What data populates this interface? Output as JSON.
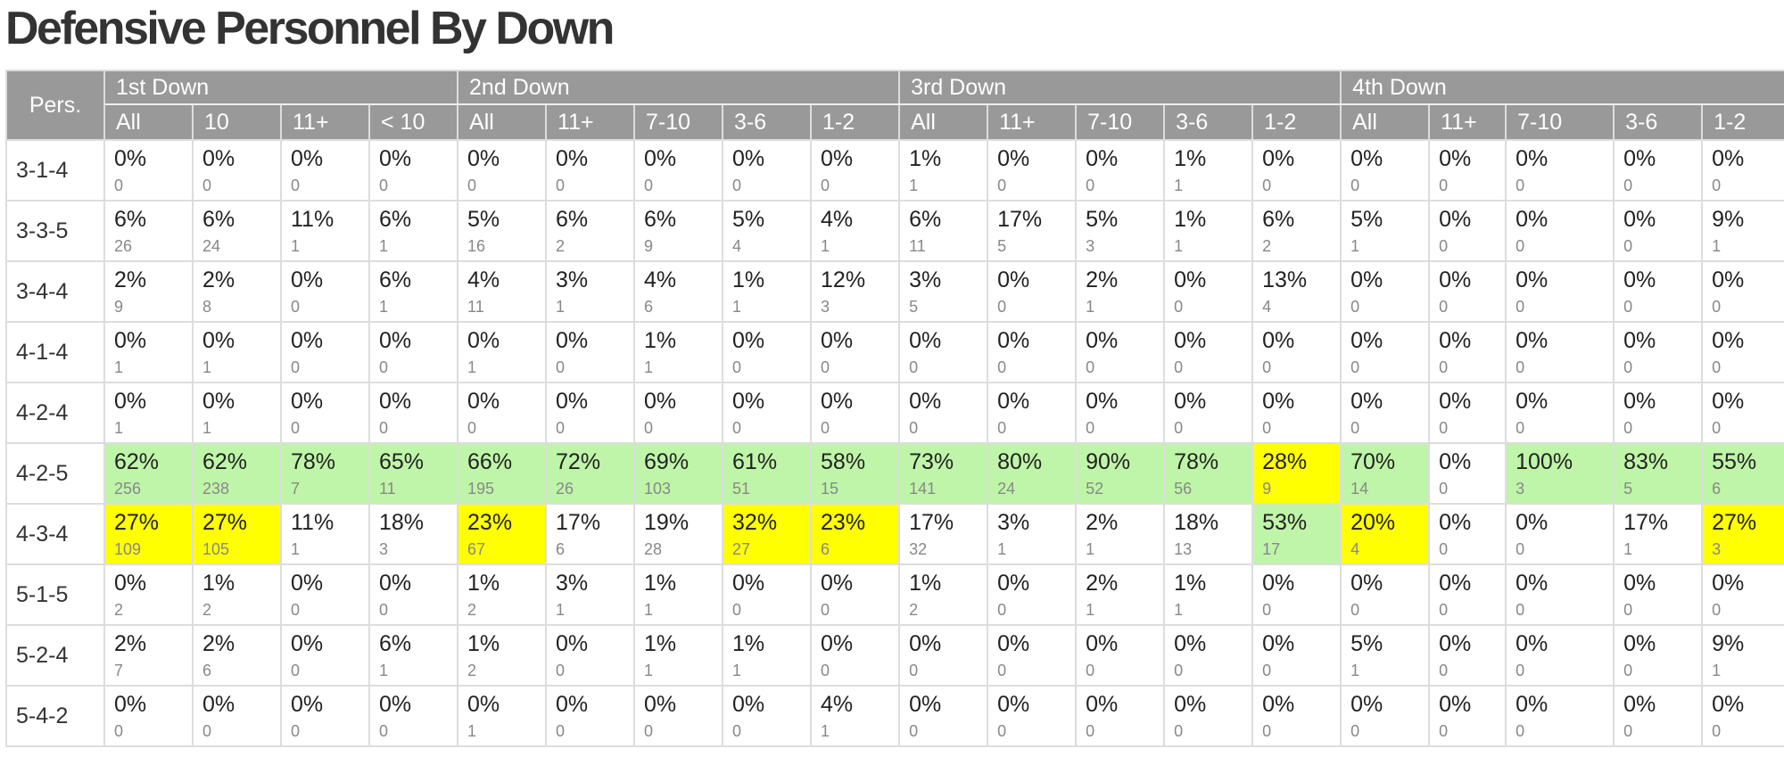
{
  "title": "Defensive Personnel By Down",
  "pers_header": "Pers.",
  "colors": {
    "header_bg": "#999999",
    "highlight_green": "#bff5a8",
    "highlight_yellow": "#ffff00"
  },
  "downs": [
    {
      "label": "1st Down",
      "columns": [
        "All",
        "10",
        "11+",
        "< 10"
      ]
    },
    {
      "label": "2nd Down",
      "columns": [
        "All",
        "11+",
        "7-10",
        "3-6",
        "1-2"
      ]
    },
    {
      "label": "3rd Down",
      "columns": [
        "All",
        "11+",
        "7-10",
        "3-6",
        "1-2"
      ]
    },
    {
      "label": "4th Down",
      "columns": [
        "All",
        "11+",
        "7-10",
        "3-6",
        "1-2"
      ]
    }
  ],
  "rows": [
    {
      "label": "3-1-4",
      "cells": [
        {
          "pct": "0%",
          "count": "0"
        },
        {
          "pct": "0%",
          "count": "0"
        },
        {
          "pct": "0%",
          "count": "0"
        },
        {
          "pct": "0%",
          "count": "0"
        },
        {
          "pct": "0%",
          "count": "0"
        },
        {
          "pct": "0%",
          "count": "0"
        },
        {
          "pct": "0%",
          "count": "0"
        },
        {
          "pct": "0%",
          "count": "0"
        },
        {
          "pct": "0%",
          "count": "0"
        },
        {
          "pct": "1%",
          "count": "1"
        },
        {
          "pct": "0%",
          "count": "0"
        },
        {
          "pct": "0%",
          "count": "0"
        },
        {
          "pct": "1%",
          "count": "1"
        },
        {
          "pct": "0%",
          "count": "0"
        },
        {
          "pct": "0%",
          "count": "0"
        },
        {
          "pct": "0%",
          "count": "0"
        },
        {
          "pct": "0%",
          "count": "0"
        },
        {
          "pct": "0%",
          "count": "0"
        },
        {
          "pct": "0%",
          "count": "0"
        }
      ]
    },
    {
      "label": "3-3-5",
      "cells": [
        {
          "pct": "6%",
          "count": "26"
        },
        {
          "pct": "6%",
          "count": "24"
        },
        {
          "pct": "11%",
          "count": "1"
        },
        {
          "pct": "6%",
          "count": "1"
        },
        {
          "pct": "5%",
          "count": "16"
        },
        {
          "pct": "6%",
          "count": "2"
        },
        {
          "pct": "6%",
          "count": "9"
        },
        {
          "pct": "5%",
          "count": "4"
        },
        {
          "pct": "4%",
          "count": "1"
        },
        {
          "pct": "6%",
          "count": "11"
        },
        {
          "pct": "17%",
          "count": "5"
        },
        {
          "pct": "5%",
          "count": "3"
        },
        {
          "pct": "1%",
          "count": "1"
        },
        {
          "pct": "6%",
          "count": "2"
        },
        {
          "pct": "5%",
          "count": "1"
        },
        {
          "pct": "0%",
          "count": "0"
        },
        {
          "pct": "0%",
          "count": "0"
        },
        {
          "pct": "0%",
          "count": "0"
        },
        {
          "pct": "9%",
          "count": "1"
        }
      ]
    },
    {
      "label": "3-4-4",
      "cells": [
        {
          "pct": "2%",
          "count": "9"
        },
        {
          "pct": "2%",
          "count": "8"
        },
        {
          "pct": "0%",
          "count": "0"
        },
        {
          "pct": "6%",
          "count": "1"
        },
        {
          "pct": "4%",
          "count": "11"
        },
        {
          "pct": "3%",
          "count": "1"
        },
        {
          "pct": "4%",
          "count": "6"
        },
        {
          "pct": "1%",
          "count": "1"
        },
        {
          "pct": "12%",
          "count": "3"
        },
        {
          "pct": "3%",
          "count": "5"
        },
        {
          "pct": "0%",
          "count": "0"
        },
        {
          "pct": "2%",
          "count": "1"
        },
        {
          "pct": "0%",
          "count": "0"
        },
        {
          "pct": "13%",
          "count": "4"
        },
        {
          "pct": "0%",
          "count": "0"
        },
        {
          "pct": "0%",
          "count": "0"
        },
        {
          "pct": "0%",
          "count": "0"
        },
        {
          "pct": "0%",
          "count": "0"
        },
        {
          "pct": "0%",
          "count": "0"
        }
      ]
    },
    {
      "label": "4-1-4",
      "cells": [
        {
          "pct": "0%",
          "count": "1"
        },
        {
          "pct": "0%",
          "count": "1"
        },
        {
          "pct": "0%",
          "count": "0"
        },
        {
          "pct": "0%",
          "count": "0"
        },
        {
          "pct": "0%",
          "count": "1"
        },
        {
          "pct": "0%",
          "count": "0"
        },
        {
          "pct": "1%",
          "count": "1"
        },
        {
          "pct": "0%",
          "count": "0"
        },
        {
          "pct": "0%",
          "count": "0"
        },
        {
          "pct": "0%",
          "count": "0"
        },
        {
          "pct": "0%",
          "count": "0"
        },
        {
          "pct": "0%",
          "count": "0"
        },
        {
          "pct": "0%",
          "count": "0"
        },
        {
          "pct": "0%",
          "count": "0"
        },
        {
          "pct": "0%",
          "count": "0"
        },
        {
          "pct": "0%",
          "count": "0"
        },
        {
          "pct": "0%",
          "count": "0"
        },
        {
          "pct": "0%",
          "count": "0"
        },
        {
          "pct": "0%",
          "count": "0"
        }
      ]
    },
    {
      "label": "4-2-4",
      "cells": [
        {
          "pct": "0%",
          "count": "1"
        },
        {
          "pct": "0%",
          "count": "1"
        },
        {
          "pct": "0%",
          "count": "0"
        },
        {
          "pct": "0%",
          "count": "0"
        },
        {
          "pct": "0%",
          "count": "0"
        },
        {
          "pct": "0%",
          "count": "0"
        },
        {
          "pct": "0%",
          "count": "0"
        },
        {
          "pct": "0%",
          "count": "0"
        },
        {
          "pct": "0%",
          "count": "0"
        },
        {
          "pct": "0%",
          "count": "0"
        },
        {
          "pct": "0%",
          "count": "0"
        },
        {
          "pct": "0%",
          "count": "0"
        },
        {
          "pct": "0%",
          "count": "0"
        },
        {
          "pct": "0%",
          "count": "0"
        },
        {
          "pct": "0%",
          "count": "0"
        },
        {
          "pct": "0%",
          "count": "0"
        },
        {
          "pct": "0%",
          "count": "0"
        },
        {
          "pct": "0%",
          "count": "0"
        },
        {
          "pct": "0%",
          "count": "0"
        }
      ]
    },
    {
      "label": "4-2-5",
      "cells": [
        {
          "pct": "62%",
          "count": "256",
          "hl": "green"
        },
        {
          "pct": "62%",
          "count": "238",
          "hl": "green"
        },
        {
          "pct": "78%",
          "count": "7",
          "hl": "green"
        },
        {
          "pct": "65%",
          "count": "11",
          "hl": "green"
        },
        {
          "pct": "66%",
          "count": "195",
          "hl": "green"
        },
        {
          "pct": "72%",
          "count": "26",
          "hl": "green"
        },
        {
          "pct": "69%",
          "count": "103",
          "hl": "green"
        },
        {
          "pct": "61%",
          "count": "51",
          "hl": "green"
        },
        {
          "pct": "58%",
          "count": "15",
          "hl": "green"
        },
        {
          "pct": "73%",
          "count": "141",
          "hl": "green"
        },
        {
          "pct": "80%",
          "count": "24",
          "hl": "green"
        },
        {
          "pct": "90%",
          "count": "52",
          "hl": "green"
        },
        {
          "pct": "78%",
          "count": "56",
          "hl": "green"
        },
        {
          "pct": "28%",
          "count": "9",
          "hl": "yellow"
        },
        {
          "pct": "70%",
          "count": "14",
          "hl": "green"
        },
        {
          "pct": "0%",
          "count": "0"
        },
        {
          "pct": "100%",
          "count": "3",
          "hl": "green"
        },
        {
          "pct": "83%",
          "count": "5",
          "hl": "green"
        },
        {
          "pct": "55%",
          "count": "6",
          "hl": "green"
        }
      ]
    },
    {
      "label": "4-3-4",
      "cells": [
        {
          "pct": "27%",
          "count": "109",
          "hl": "yellow"
        },
        {
          "pct": "27%",
          "count": "105",
          "hl": "yellow"
        },
        {
          "pct": "11%",
          "count": "1"
        },
        {
          "pct": "18%",
          "count": "3"
        },
        {
          "pct": "23%",
          "count": "67",
          "hl": "yellow"
        },
        {
          "pct": "17%",
          "count": "6"
        },
        {
          "pct": "19%",
          "count": "28"
        },
        {
          "pct": "32%",
          "count": "27",
          "hl": "yellow"
        },
        {
          "pct": "23%",
          "count": "6",
          "hl": "yellow"
        },
        {
          "pct": "17%",
          "count": "32"
        },
        {
          "pct": "3%",
          "count": "1"
        },
        {
          "pct": "2%",
          "count": "1"
        },
        {
          "pct": "18%",
          "count": "13"
        },
        {
          "pct": "53%",
          "count": "17",
          "hl": "green"
        },
        {
          "pct": "20%",
          "count": "4",
          "hl": "yellow"
        },
        {
          "pct": "0%",
          "count": "0"
        },
        {
          "pct": "0%",
          "count": "0"
        },
        {
          "pct": "17%",
          "count": "1"
        },
        {
          "pct": "27%",
          "count": "3",
          "hl": "yellow"
        }
      ]
    },
    {
      "label": "5-1-5",
      "cells": [
        {
          "pct": "0%",
          "count": "2"
        },
        {
          "pct": "1%",
          "count": "2"
        },
        {
          "pct": "0%",
          "count": "0"
        },
        {
          "pct": "0%",
          "count": "0"
        },
        {
          "pct": "1%",
          "count": "2"
        },
        {
          "pct": "3%",
          "count": "1"
        },
        {
          "pct": "1%",
          "count": "1"
        },
        {
          "pct": "0%",
          "count": "0"
        },
        {
          "pct": "0%",
          "count": "0"
        },
        {
          "pct": "1%",
          "count": "2"
        },
        {
          "pct": "0%",
          "count": "0"
        },
        {
          "pct": "2%",
          "count": "1"
        },
        {
          "pct": "1%",
          "count": "1"
        },
        {
          "pct": "0%",
          "count": "0"
        },
        {
          "pct": "0%",
          "count": "0"
        },
        {
          "pct": "0%",
          "count": "0"
        },
        {
          "pct": "0%",
          "count": "0"
        },
        {
          "pct": "0%",
          "count": "0"
        },
        {
          "pct": "0%",
          "count": "0"
        }
      ]
    },
    {
      "label": "5-2-4",
      "cells": [
        {
          "pct": "2%",
          "count": "7"
        },
        {
          "pct": "2%",
          "count": "6"
        },
        {
          "pct": "0%",
          "count": "0"
        },
        {
          "pct": "6%",
          "count": "1"
        },
        {
          "pct": "1%",
          "count": "2"
        },
        {
          "pct": "0%",
          "count": "0"
        },
        {
          "pct": "1%",
          "count": "1"
        },
        {
          "pct": "1%",
          "count": "1"
        },
        {
          "pct": "0%",
          "count": "0"
        },
        {
          "pct": "0%",
          "count": "0"
        },
        {
          "pct": "0%",
          "count": "0"
        },
        {
          "pct": "0%",
          "count": "0"
        },
        {
          "pct": "0%",
          "count": "0"
        },
        {
          "pct": "0%",
          "count": "0"
        },
        {
          "pct": "5%",
          "count": "1"
        },
        {
          "pct": "0%",
          "count": "0"
        },
        {
          "pct": "0%",
          "count": "0"
        },
        {
          "pct": "0%",
          "count": "0"
        },
        {
          "pct": "9%",
          "count": "1"
        }
      ]
    },
    {
      "label": "5-4-2",
      "cells": [
        {
          "pct": "0%",
          "count": "0"
        },
        {
          "pct": "0%",
          "count": "0"
        },
        {
          "pct": "0%",
          "count": "0"
        },
        {
          "pct": "0%",
          "count": "0"
        },
        {
          "pct": "0%",
          "count": "1"
        },
        {
          "pct": "0%",
          "count": "0"
        },
        {
          "pct": "0%",
          "count": "0"
        },
        {
          "pct": "0%",
          "count": "0"
        },
        {
          "pct": "4%",
          "count": "1"
        },
        {
          "pct": "0%",
          "count": "0"
        },
        {
          "pct": "0%",
          "count": "0"
        },
        {
          "pct": "0%",
          "count": "0"
        },
        {
          "pct": "0%",
          "count": "0"
        },
        {
          "pct": "0%",
          "count": "0"
        },
        {
          "pct": "0%",
          "count": "0"
        },
        {
          "pct": "0%",
          "count": "0"
        },
        {
          "pct": "0%",
          "count": "0"
        },
        {
          "pct": "0%",
          "count": "0"
        },
        {
          "pct": "0%",
          "count": "0"
        }
      ]
    }
  ]
}
